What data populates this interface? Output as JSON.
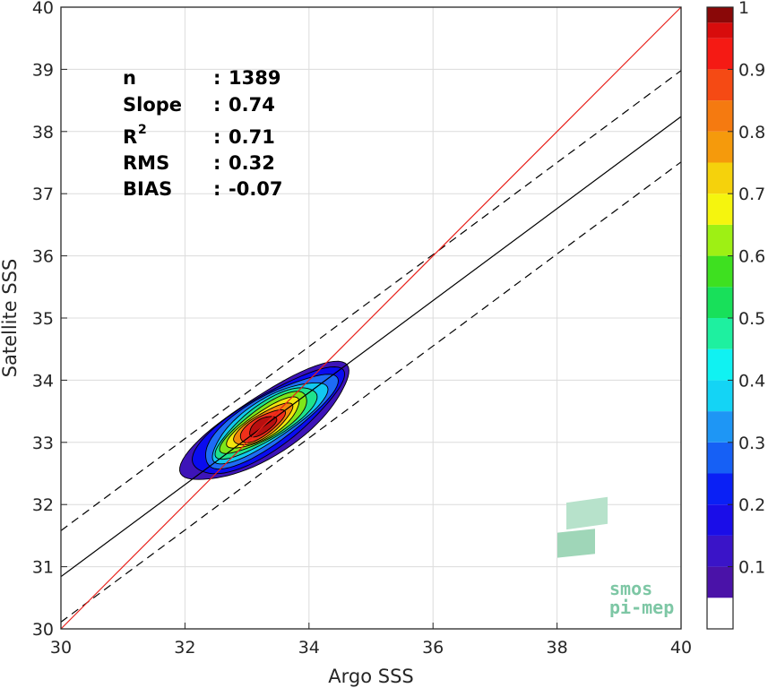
{
  "chart_data": {
    "type": "scatter",
    "subtype": "density-contour",
    "xlabel": "Argo SSS",
    "ylabel": "Satellite SSS",
    "xlim": [
      30,
      40
    ],
    "ylim": [
      30,
      40
    ],
    "xticks": [
      "30",
      "32",
      "34",
      "36",
      "38",
      "40"
    ],
    "yticks": [
      "30",
      "31",
      "32",
      "33",
      "34",
      "35",
      "36",
      "37",
      "38",
      "39",
      "40"
    ],
    "grid": true,
    "stats": [
      {
        "label": "n",
        "sep": ": ",
        "value": "1389"
      },
      {
        "label": "Slope",
        "sep": ": ",
        "value": "0.74"
      },
      {
        "label": "R",
        "sup": "2",
        "sep": ": ",
        "value": "0.71"
      },
      {
        "label": "RMS",
        "sep": ": ",
        "value": "0.32"
      },
      {
        "label": "BIAS",
        "sep": ": ",
        "value": "-0.07"
      }
    ],
    "lines": {
      "identity": {
        "x": [
          30,
          40
        ],
        "y": [
          30,
          40
        ],
        "color": "#e8211b"
      },
      "fit": {
        "x": [
          30,
          40
        ],
        "y": [
          30.84,
          38.24
        ],
        "color": "#000000"
      },
      "fit_upper": {
        "x": [
          30,
          40
        ],
        "y": [
          31.58,
          38.98
        ],
        "dash": true
      },
      "fit_lower": {
        "x": [
          30,
          40
        ],
        "y": [
          30.11,
          37.51
        ],
        "dash": true
      }
    },
    "density": {
      "center": [
        33.3,
        33.3
      ],
      "angle_deg": 33,
      "levels": [
        {
          "level": 0.05,
          "a": 1.58,
          "b": 0.48,
          "dx": 0.02,
          "dy": 0.0,
          "color": "#3d14b8"
        },
        {
          "level": 0.15,
          "a": 1.42,
          "b": 0.43,
          "dx": 0.02,
          "dy": 0.02,
          "color": "#0a0cf0"
        },
        {
          "level": 0.25,
          "a": 1.25,
          "b": 0.38,
          "dx": 0.04,
          "dy": 0.04,
          "color": "#1e6cf5"
        },
        {
          "level": 0.35,
          "a": 1.08,
          "b": 0.33,
          "dx": 0.04,
          "dy": 0.04,
          "color": "#12c8f0"
        },
        {
          "level": 0.45,
          "a": 0.95,
          "b": 0.29,
          "dx": 0.02,
          "dy": 0.03,
          "color": "#1fe28c"
        },
        {
          "level": 0.55,
          "a": 0.82,
          "b": 0.25,
          "dx": 0.0,
          "dy": 0.02,
          "color": "#7ee61a"
        },
        {
          "level": 0.65,
          "a": 0.68,
          "b": 0.21,
          "dx": -0.02,
          "dy": 0.0,
          "color": "#f2e60e"
        },
        {
          "level": 0.75,
          "a": 0.55,
          "b": 0.18,
          "dx": -0.04,
          "dy": -0.02,
          "color": "#f28a0c"
        },
        {
          "level": 0.85,
          "a": 0.42,
          "b": 0.15,
          "dx": -0.06,
          "dy": -0.04,
          "color": "#f0301a"
        },
        {
          "level": 0.95,
          "a": 0.25,
          "b": 0.11,
          "dx": -0.05,
          "dy": -0.04,
          "color": "#b80f0f"
        }
      ]
    },
    "colorbar": {
      "range": [
        0,
        1
      ],
      "ticks": [
        "0.1",
        "0.2",
        "0.3",
        "0.4",
        "0.5",
        "0.6",
        "0.7",
        "0.8",
        "0.9",
        "1"
      ],
      "bands": [
        {
          "from": 0.0,
          "to": 0.05,
          "color": "#ffffff"
        },
        {
          "from": 0.05,
          "to": 0.1,
          "color": "#4a12a8"
        },
        {
          "from": 0.1,
          "to": 0.15,
          "color": "#3a14c8"
        },
        {
          "from": 0.15,
          "to": 0.2,
          "color": "#1a0de8"
        },
        {
          "from": 0.2,
          "to": 0.25,
          "color": "#0a20f5"
        },
        {
          "from": 0.25,
          "to": 0.3,
          "color": "#1660f5"
        },
        {
          "from": 0.3,
          "to": 0.35,
          "color": "#1e96f5"
        },
        {
          "from": 0.35,
          "to": 0.4,
          "color": "#14d4f5"
        },
        {
          "from": 0.4,
          "to": 0.45,
          "color": "#10f2f2"
        },
        {
          "from": 0.45,
          "to": 0.5,
          "color": "#1ef0a0"
        },
        {
          "from": 0.5,
          "to": 0.55,
          "color": "#18e05a"
        },
        {
          "from": 0.55,
          "to": 0.6,
          "color": "#3ee020"
        },
        {
          "from": 0.6,
          "to": 0.65,
          "color": "#9ef014"
        },
        {
          "from": 0.65,
          "to": 0.7,
          "color": "#f5f50e"
        },
        {
          "from": 0.7,
          "to": 0.75,
          "color": "#f5d20c"
        },
        {
          "from": 0.75,
          "to": 0.8,
          "color": "#f59a0c"
        },
        {
          "from": 0.8,
          "to": 0.85,
          "color": "#f57a10"
        },
        {
          "from": 0.85,
          "to": 0.9,
          "color": "#f54a14"
        },
        {
          "from": 0.9,
          "to": 0.95,
          "color": "#f51a14"
        },
        {
          "from": 0.95,
          "to": 0.975,
          "color": "#d80c0c"
        },
        {
          "from": 0.975,
          "to": 1.0,
          "color": "#8a0808"
        }
      ]
    }
  },
  "logo": {
    "line1": "smos",
    "line2": "pi-mep"
  }
}
